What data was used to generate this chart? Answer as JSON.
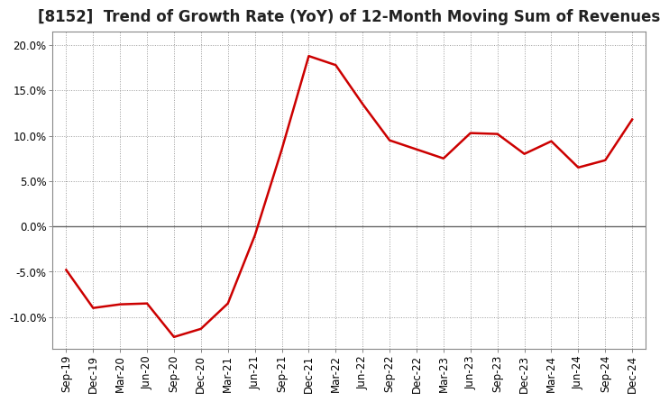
{
  "title": "[8152]  Trend of Growth Rate (YoY) of 12-Month Moving Sum of Revenues",
  "x_labels": [
    "Sep-19",
    "Dec-19",
    "Mar-20",
    "Jun-20",
    "Sep-20",
    "Dec-20",
    "Mar-21",
    "Jun-21",
    "Sep-21",
    "Dec-21",
    "Mar-22",
    "Jun-22",
    "Sep-22",
    "Dec-22",
    "Mar-23",
    "Jun-23",
    "Sep-23",
    "Dec-23",
    "Mar-24",
    "Jun-24",
    "Sep-24",
    "Dec-24"
  ],
  "y_values": [
    -4.8,
    -9.0,
    -8.6,
    -8.5,
    -12.2,
    -11.3,
    -8.5,
    -1.0,
    8.5,
    18.8,
    17.8,
    13.5,
    9.5,
    8.5,
    7.5,
    10.3,
    10.2,
    8.0,
    9.4,
    6.5,
    7.3,
    11.8
  ],
  "line_color": "#cc0000",
  "line_width": 1.8,
  "ylim": [
    -13.5,
    21.5
  ],
  "yticks": [
    -10.0,
    -5.0,
    0.0,
    5.0,
    10.0,
    15.0,
    20.0
  ],
  "ytick_labels": [
    "-10.0%",
    "-5.0%",
    "0.0%",
    "5.0%",
    "10.0%",
    "15.0%",
    "20.0%"
  ],
  "grid_color": "#999999",
  "zero_line_color": "#666666",
  "background_color": "#ffffff",
  "plot_bg_color": "#ffffff",
  "title_fontsize": 12,
  "tick_fontsize": 8.5,
  "title_color": "#222222"
}
